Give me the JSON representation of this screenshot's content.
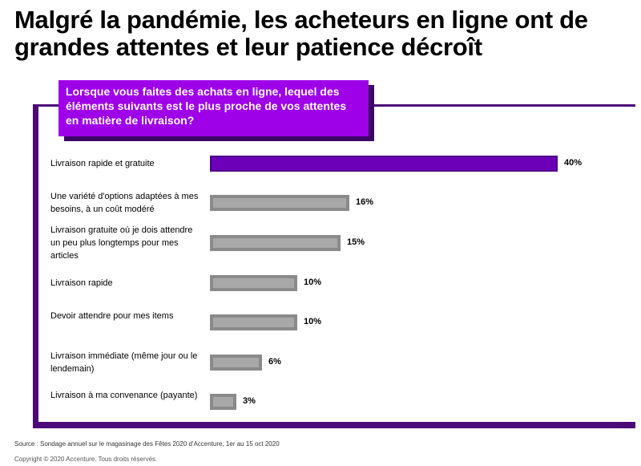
{
  "title": "Malgré la pandémie, les acheteurs en ligne ont de grandes attentes et leur patience décroît",
  "question": "Lorsque vous faites des achats en ligne, lequel des éléments suivants est le plus proche de vos attentes en matière de livraison?",
  "source": "Source : Sondage annuel sur le magasinage des Fêtes 2020 d'Accenture, 1er au 15 oct 2020",
  "copyright": "Copyright © 2020 Accenture. Tous droits réservés.",
  "colors": {
    "highlight": "#6c00b8",
    "bar": "#a8a8a8",
    "accent": "#9e00e8",
    "frame": "#4b0a77"
  },
  "chart_data": {
    "type": "bar",
    "orientation": "horizontal",
    "categories": [
      "Livraison rapide et gratuite",
      "Une variété d'options adaptées à mes besoins, à un coût modéré",
      "Livraison gratuite où je dois attendre un peu plus longtemps pour mes articles",
      "Livraison rapide",
      "Devoir attendre pour mes items",
      "Livraison immédiate (même jour ou le lendemain)",
      "Livraison à ma convenance (payante)"
    ],
    "values": [
      40,
      16,
      15,
      10,
      10,
      6,
      3
    ],
    "labels": [
      "40%",
      "16%",
      "15%",
      "10%",
      "10%",
      "6%",
      "3%"
    ],
    "highlighted_index": 0,
    "unit": "%",
    "xlim": [
      0,
      40
    ],
    "grid": false,
    "legend": "none"
  }
}
